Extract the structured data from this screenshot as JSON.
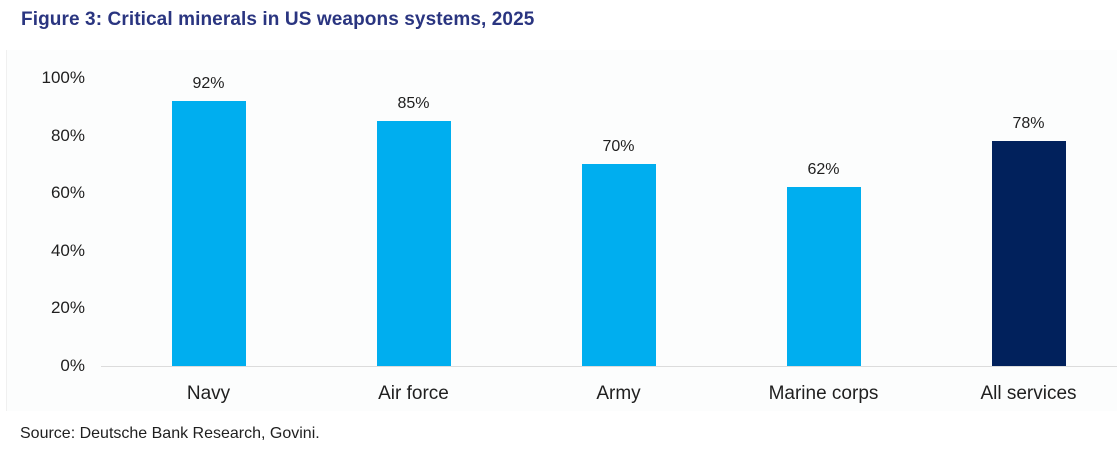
{
  "page": {
    "title": "Figure 3: Critical minerals in US weapons systems, 2025",
    "source": "Source: Deutsche Bank Research, Govini."
  },
  "chart_data": {
    "type": "bar",
    "title": "Figure 3: Critical minerals in US weapons systems, 2025",
    "categories": [
      "Navy",
      "Air force",
      "Army",
      "Marine corps",
      "All services"
    ],
    "values": [
      92,
      85,
      70,
      62,
      78
    ],
    "value_labels": [
      "92%",
      "85%",
      "70%",
      "62%",
      "78%"
    ],
    "bar_colors": [
      "#00AEEF",
      "#00AEEF",
      "#00AEEF",
      "#00AEEF",
      "#01215C"
    ],
    "ylim": [
      0,
      100
    ],
    "yticks": [
      0,
      20,
      40,
      60,
      80,
      100
    ],
    "ytick_labels": [
      "0%",
      "20%",
      "40%",
      "60%",
      "80%",
      "100%"
    ],
    "grid": false,
    "legend": "none",
    "xlabel": "",
    "ylabel": "",
    "source": "Source: Deutsche Bank Research, Govini.",
    "colors": {
      "bar_primary": "#00AEEF",
      "bar_highlight": "#01215C",
      "title_text": "#2A3580",
      "axis_text": "#1F1F1F",
      "axis_line": "#DCDCDC",
      "panel_bg": "#FCFDFD",
      "panel_border": "#F0F0F0",
      "page_bg": "#FFFFFF"
    }
  }
}
